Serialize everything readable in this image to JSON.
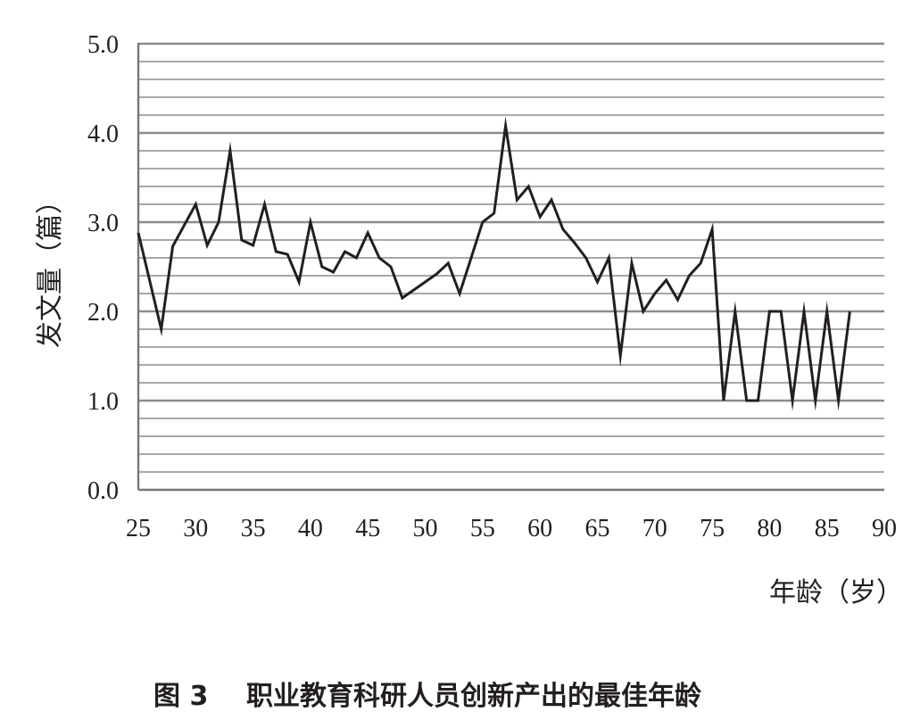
{
  "figure": {
    "caption_number": "图 3",
    "caption_title": "职业教育科研人员创新产出的最佳年龄"
  },
  "chart_data": {
    "type": "line",
    "title": "",
    "xlabel": "年龄（岁）",
    "ylabel": "发文量（篇）",
    "xlim": [
      25,
      90
    ],
    "ylim": [
      0,
      5
    ],
    "x_ticks": [
      "25",
      "30",
      "35",
      "40",
      "45",
      "50",
      "55",
      "60",
      "65",
      "70",
      "75",
      "80",
      "85",
      "90"
    ],
    "y_ticks": [
      "0.0",
      "1.0",
      "2.0",
      "3.0",
      "4.0",
      "5.0"
    ],
    "minor_grid_step": 0.2,
    "grid": true,
    "legend": "none",
    "line_color": "#231f20",
    "grid_color": "#8c8c8c",
    "series": [
      {
        "x": [
          25,
          27,
          28,
          30,
          31,
          32,
          33,
          34,
          35,
          36,
          37,
          38,
          39,
          40,
          41,
          42,
          43,
          44,
          45,
          46,
          47,
          48,
          49,
          50,
          51,
          52,
          53,
          54,
          55,
          56,
          57,
          58,
          59,
          60,
          61,
          62,
          63,
          64,
          65,
          66,
          67,
          68,
          69,
          70,
          71,
          72,
          73,
          74,
          75,
          76,
          77,
          78,
          79,
          80,
          81,
          82,
          83,
          84,
          85,
          86,
          87
        ],
        "y": [
          2.88,
          1.8,
          2.73,
          3.2,
          2.74,
          3.0,
          3.8,
          2.8,
          2.74,
          3.2,
          2.67,
          2.64,
          2.33,
          3.0,
          2.5,
          2.44,
          2.67,
          2.6,
          2.88,
          2.6,
          2.5,
          2.15,
          2.24,
          2.33,
          2.42,
          2.54,
          2.2,
          2.6,
          3.0,
          3.1,
          4.08,
          3.25,
          3.4,
          3.06,
          3.25,
          2.92,
          2.77,
          2.6,
          2.33,
          2.6,
          1.5,
          2.54,
          2.0,
          2.2,
          2.35,
          2.13,
          2.4,
          2.54,
          2.92,
          1.0,
          2.0,
          1.0,
          1.0,
          2.0,
          2.0,
          1.0,
          2.0,
          1.0,
          2.0,
          1.0,
          2.0
        ]
      }
    ]
  }
}
